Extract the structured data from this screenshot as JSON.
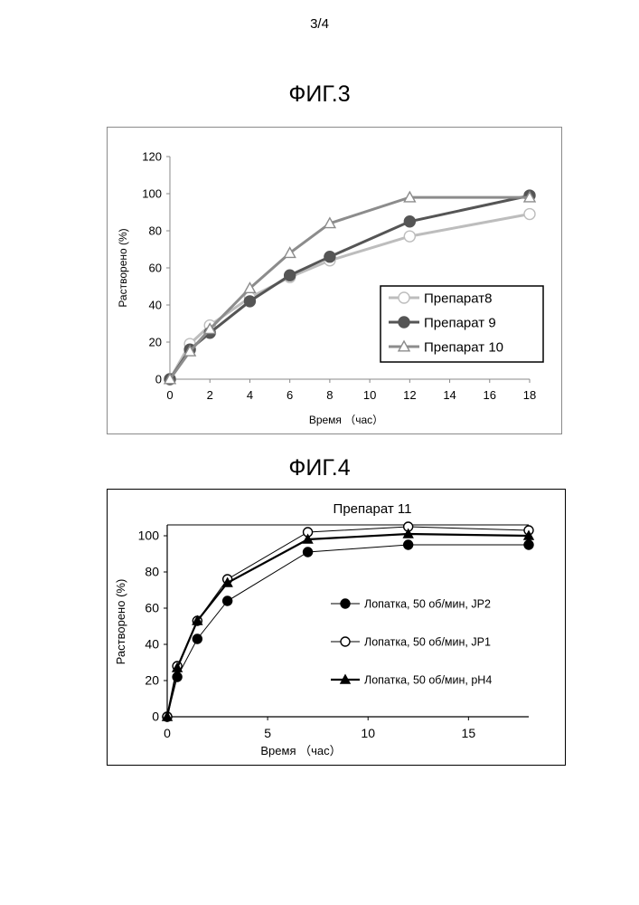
{
  "page": {
    "number": "3/4"
  },
  "figures": [
    {
      "title": "ФИГ.3"
    },
    {
      "title": "ФИГ.4"
    }
  ],
  "chart_data": [
    {
      "type": "line",
      "title": "",
      "xlabel": "Время （час）",
      "ylabel": "Растворено (%)",
      "xlim": [
        0,
        18
      ],
      "ylim": [
        0,
        120
      ],
      "x_ticks": [
        0,
        2,
        4,
        6,
        8,
        10,
        12,
        14,
        16,
        18
      ],
      "y_ticks": [
        0,
        20,
        40,
        60,
        80,
        100,
        120
      ],
      "grid": false,
      "legend_position": "lower-right",
      "series": [
        {
          "name": "Препарат8",
          "marker": "circle-open",
          "color": "#bdbdbd",
          "x": [
            0,
            1,
            2,
            4,
            6,
            8,
            12,
            18
          ],
          "y": [
            0,
            19,
            29,
            44,
            55,
            64,
            77,
            89
          ]
        },
        {
          "name": "Препарат 9",
          "marker": "circle-filled",
          "color": "#555555",
          "x": [
            0,
            1,
            2,
            4,
            6,
            8,
            12,
            18
          ],
          "y": [
            0,
            16,
            25,
            42,
            56,
            66,
            85,
            99
          ]
        },
        {
          "name": "Препарат 10",
          "marker": "triangle-open",
          "color": "#8c8c8c",
          "x": [
            0,
            1,
            2,
            4,
            6,
            8,
            12,
            18
          ],
          "y": [
            0,
            15,
            27,
            49,
            68,
            84,
            98,
            98
          ]
        }
      ]
    },
    {
      "type": "line",
      "title": "Препарат 11",
      "xlabel": "Время （час）",
      "ylabel": "Растворено (%)",
      "xlim": [
        0,
        18
      ],
      "ylim": [
        0,
        105
      ],
      "x_ticks": [
        0,
        5,
        10,
        15
      ],
      "y_ticks": [
        0,
        20,
        40,
        60,
        80,
        100
      ],
      "grid": false,
      "legend_position": "right",
      "series": [
        {
          "name": "Лопатка, 50 об/мин, JP2",
          "marker": "circle-filled",
          "color": "#000000",
          "x": [
            0,
            0.5,
            1.5,
            3,
            7,
            12,
            18
          ],
          "y": [
            0,
            22,
            43,
            64,
            91,
            95,
            95
          ]
        },
        {
          "name": "Лопатка, 50 об/мин, JP1",
          "marker": "circle-open",
          "color": "#000000",
          "x": [
            0,
            0.5,
            1.5,
            3,
            7,
            12,
            18
          ],
          "y": [
            0,
            28,
            53,
            76,
            102,
            105,
            103
          ]
        },
        {
          "name": "Лопатка, 50 об/мин, pH4",
          "marker": "triangle-filled",
          "color": "#000000",
          "x": [
            0,
            0.5,
            1.5,
            3,
            7,
            12,
            18
          ],
          "y": [
            0,
            27,
            53,
            74,
            98,
            101,
            100
          ]
        }
      ]
    }
  ]
}
